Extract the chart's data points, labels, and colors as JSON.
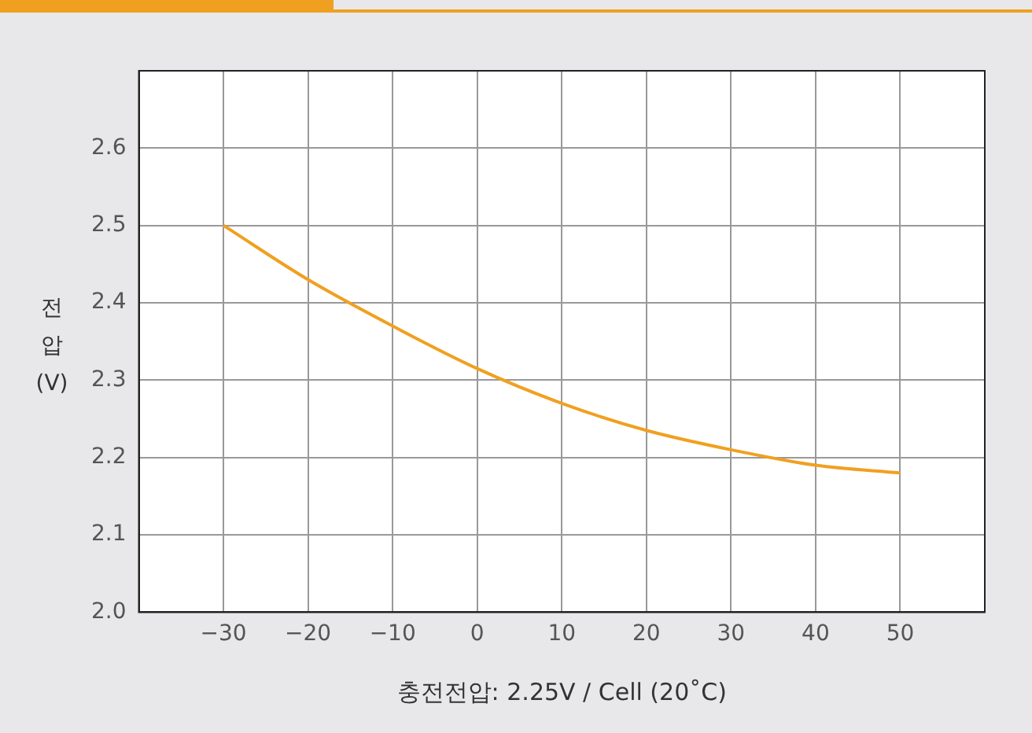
{
  "chart_data": {
    "type": "line",
    "xlabel": "충전전압: 2.25V / Cell (20˚C)",
    "ylabel": "전압 (V)",
    "x": [
      -30,
      -20,
      -10,
      0,
      10,
      20,
      30,
      40,
      50
    ],
    "values": [
      2.5,
      2.43,
      2.37,
      2.315,
      2.27,
      2.235,
      2.21,
      2.19,
      2.18
    ],
    "color": "#f0a020",
    "xlim": [
      -40,
      60
    ],
    "xticks": [
      {
        "value": -40,
        "label": null
      },
      {
        "value": -30,
        "label": "−30"
      },
      {
        "value": -20,
        "label": "−20"
      },
      {
        "value": -10,
        "label": "−10"
      },
      0,
      10,
      20,
      30,
      40,
      50,
      {
        "value": 60,
        "label": null
      }
    ],
    "ylim": [
      2.0,
      2.7
    ],
    "yticks": [
      {
        "value": 2.0,
        "label": "2.0"
      },
      2.1,
      2.2,
      2.3,
      2.4,
      2.5,
      2.6,
      {
        "value": 2.7,
        "label": null
      }
    ],
    "grid": true,
    "legend": false,
    "marker": "none",
    "line_style": "solid"
  }
}
